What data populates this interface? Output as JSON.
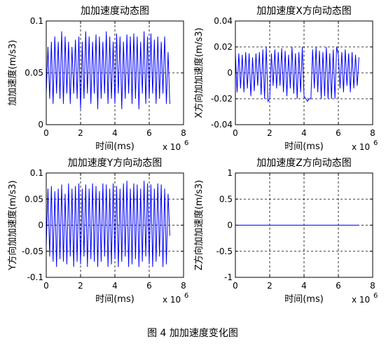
{
  "figure": {
    "caption": "图 4  加加速度变化图"
  },
  "chart_data": [
    {
      "type": "line",
      "title": "加加速度动态图",
      "xlabel": "时间(ms)",
      "ylabel": "加加速度(m/s3)",
      "x_multiplier": "x 10",
      "x_multiplier_exp": "6",
      "xlim": [
        0,
        8
      ],
      "ylim": [
        0,
        0.1
      ],
      "xticks": [
        "0",
        "2",
        "4",
        "6",
        "8"
      ],
      "yticks": [
        "0",
        "0.05",
        "0.1"
      ],
      "ytick_values": [
        0,
        0.05,
        0.1
      ],
      "grid": true,
      "series": [
        {
          "color": "#0000ff",
          "x": [
            0,
            0.1,
            0.2,
            0.3,
            0.4,
            0.5,
            0.6,
            0.7,
            0.8,
            0.9,
            1.0,
            1.1,
            1.2,
            1.3,
            1.4,
            1.5,
            1.6,
            1.7,
            1.8,
            1.9,
            2.0,
            2.1,
            2.2,
            2.3,
            2.4,
            2.5,
            2.6,
            2.7,
            2.8,
            2.9,
            3.0,
            3.1,
            3.2,
            3.3,
            3.4,
            3.5,
            3.6,
            3.7,
            3.8,
            3.9,
            4.0,
            4.1,
            4.2,
            4.3,
            4.4,
            4.5,
            4.6,
            4.7,
            4.8,
            4.9,
            5.0,
            5.1,
            5.2,
            5.3,
            5.4,
            5.5,
            5.6,
            5.7,
            5.8,
            5.9,
            6.0,
            6.1,
            6.2,
            6.3,
            6.4,
            6.5,
            6.6,
            6.7,
            6.8,
            6.9,
            7.0,
            7.1,
            7.2
          ],
          "y": [
            0.03,
            0.075,
            0.025,
            0.08,
            0.02,
            0.085,
            0.03,
            0.08,
            0.025,
            0.09,
            0.02,
            0.085,
            0.03,
            0.08,
            0.02,
            0.075,
            0.03,
            0.082,
            0.025,
            0.085,
            0.015,
            0.08,
            0.025,
            0.09,
            0.03,
            0.085,
            0.02,
            0.08,
            0.03,
            0.087,
            0.015,
            0.085,
            0.025,
            0.08,
            0.03,
            0.09,
            0.02,
            0.085,
            0.025,
            0.08,
            0.02,
            0.088,
            0.03,
            0.085,
            0.015,
            0.08,
            0.025,
            0.087,
            0.03,
            0.085,
            0.02,
            0.088,
            0.025,
            0.085,
            0.015,
            0.08,
            0.03,
            0.09,
            0.02,
            0.085,
            0.025,
            0.088,
            0.03,
            0.082,
            0.02,
            0.085,
            0.025,
            0.08,
            0.03,
            0.085,
            0.02,
            0.07,
            0.02
          ]
        }
      ]
    },
    {
      "type": "line",
      "title": "加加速度X方向动态图",
      "xlabel": "时间(ms)",
      "ylabel": "X方向加加速度(m/s3)",
      "x_multiplier": "x 10",
      "x_multiplier_exp": "6",
      "xlim": [
        0,
        8
      ],
      "ylim": [
        -0.04,
        0.04
      ],
      "xticks": [
        "0",
        "2",
        "4",
        "6",
        "8"
      ],
      "yticks": [
        "-0.04",
        "-0.02",
        "0",
        "0.02",
        "0.04"
      ],
      "ytick_values": [
        -0.04,
        -0.02,
        0,
        0.02,
        0.04
      ],
      "grid": true,
      "series": [
        {
          "color": "#0000ff",
          "x": [
            0,
            0.1,
            0.2,
            0.3,
            0.4,
            0.5,
            0.6,
            0.7,
            0.8,
            0.9,
            1.0,
            1.1,
            1.2,
            1.3,
            1.4,
            1.5,
            1.6,
            1.7,
            1.8,
            1.9,
            2.0,
            2.1,
            2.2,
            2.3,
            2.4,
            2.5,
            2.6,
            2.7,
            2.8,
            2.9,
            3.0,
            3.1,
            3.2,
            3.3,
            3.4,
            3.5,
            3.6,
            3.7,
            3.8,
            3.9,
            4.0,
            4.1,
            4.2,
            4.3,
            4.4,
            4.5,
            4.6,
            4.7,
            4.8,
            4.9,
            5.0,
            5.1,
            5.2,
            5.3,
            5.4,
            5.5,
            5.6,
            5.7,
            5.8,
            5.9,
            6.0,
            6.1,
            6.2,
            6.3,
            6.4,
            6.5,
            6.6,
            6.7,
            6.8,
            6.9,
            7.0,
            7.1,
            7.2
          ],
          "y": [
            0.015,
            -0.015,
            0.015,
            -0.012,
            0.014,
            -0.015,
            0.016,
            -0.012,
            0.015,
            -0.018,
            0.012,
            -0.014,
            0.015,
            -0.01,
            0.016,
            -0.017,
            0.018,
            -0.02,
            0.02,
            -0.022,
            -0.02,
            0.015,
            -0.01,
            0.018,
            -0.012,
            0.016,
            -0.01,
            0.019,
            -0.015,
            0.017,
            -0.018,
            0.014,
            -0.012,
            0.02,
            -0.016,
            0.015,
            -0.02,
            0.016,
            -0.015,
            0.02,
            -0.018,
            -0.02,
            -0.022,
            -0.02,
            -0.02,
            0.018,
            -0.012,
            0.02,
            -0.015,
            0.017,
            -0.02,
            0.016,
            -0.018,
            0.02,
            -0.02,
            0.015,
            -0.02,
            0.018,
            -0.02,
            0.02,
            0.014,
            -0.012,
            0.016,
            -0.015,
            0.018,
            -0.01,
            0.015,
            -0.015,
            0.016,
            -0.012,
            0.014,
            -0.01,
            0.012
          ]
        }
      ]
    },
    {
      "type": "line",
      "title": "加加速度Y方向动态图",
      "xlabel": "时间(ms)",
      "ylabel": "Y方向加加速度(m/s3)",
      "x_multiplier": "x 10",
      "x_multiplier_exp": "6",
      "xlim": [
        0,
        8
      ],
      "ylim": [
        -0.1,
        0.1
      ],
      "xticks": [
        "0",
        "2",
        "4",
        "6",
        "8"
      ],
      "yticks": [
        "-0.1",
        "-0.05",
        "0",
        "0.05",
        "0.1"
      ],
      "ytick_values": [
        -0.1,
        -0.05,
        0,
        0.05,
        0.1
      ],
      "grid": true,
      "series": [
        {
          "color": "#0000ff",
          "x": [
            0,
            0.1,
            0.2,
            0.3,
            0.4,
            0.5,
            0.6,
            0.7,
            0.8,
            0.9,
            1.0,
            1.1,
            1.2,
            1.3,
            1.4,
            1.5,
            1.6,
            1.7,
            1.8,
            1.9,
            2.0,
            2.1,
            2.2,
            2.3,
            2.4,
            2.5,
            2.6,
            2.7,
            2.8,
            2.9,
            3.0,
            3.1,
            3.2,
            3.3,
            3.4,
            3.5,
            3.6,
            3.7,
            3.8,
            3.9,
            4.0,
            4.1,
            4.2,
            4.3,
            4.4,
            4.5,
            4.6,
            4.7,
            4.8,
            4.9,
            5.0,
            5.1,
            5.2,
            5.3,
            5.4,
            5.5,
            5.6,
            5.7,
            5.8,
            5.9,
            6.0,
            6.1,
            6.2,
            6.3,
            6.4,
            6.5,
            6.6,
            6.7,
            6.8,
            6.9,
            7.0,
            7.1,
            7.2
          ],
          "y": [
            -0.04,
            0.07,
            -0.06,
            0.075,
            -0.07,
            0.065,
            -0.08,
            0.07,
            -0.065,
            0.078,
            -0.07,
            0.06,
            -0.075,
            0.08,
            -0.06,
            0.07,
            -0.08,
            0.075,
            -0.07,
            0.08,
            -0.075,
            0.07,
            -0.06,
            0.078,
            -0.08,
            0.07,
            -0.065,
            0.08,
            -0.07,
            0.075,
            -0.08,
            0.065,
            -0.07,
            0.08,
            -0.06,
            0.078,
            -0.08,
            0.07,
            -0.075,
            0.08,
            -0.065,
            0.075,
            -0.08,
            0.07,
            -0.07,
            0.08,
            -0.06,
            0.085,
            -0.08,
            0.07,
            -0.075,
            0.08,
            -0.065,
            0.078,
            -0.08,
            0.07,
            -0.07,
            0.085,
            -0.06,
            0.08,
            -0.075,
            0.078,
            -0.08,
            0.07,
            -0.07,
            0.08,
            -0.06,
            0.078,
            -0.08,
            0.07,
            -0.075,
            0.06,
            -0.02
          ]
        }
      ]
    },
    {
      "type": "line",
      "title": "加加速度Z方向动态图",
      "xlabel": "时间(ms)",
      "ylabel": "Z方向加加速度(m/s3)",
      "x_multiplier": "x 10",
      "x_multiplier_exp": "6",
      "xlim": [
        0,
        8
      ],
      "ylim": [
        -1,
        1
      ],
      "xticks": [
        "0",
        "2",
        "4",
        "6",
        "8"
      ],
      "yticks": [
        "-1",
        "-0.5",
        "0",
        "0.5",
        "1"
      ],
      "ytick_values": [
        -1,
        -0.5,
        0,
        0.5,
        1
      ],
      "grid": true,
      "series": [
        {
          "color": "#0000ff",
          "x": [
            0,
            7.2
          ],
          "y": [
            0,
            0
          ]
        }
      ]
    }
  ]
}
